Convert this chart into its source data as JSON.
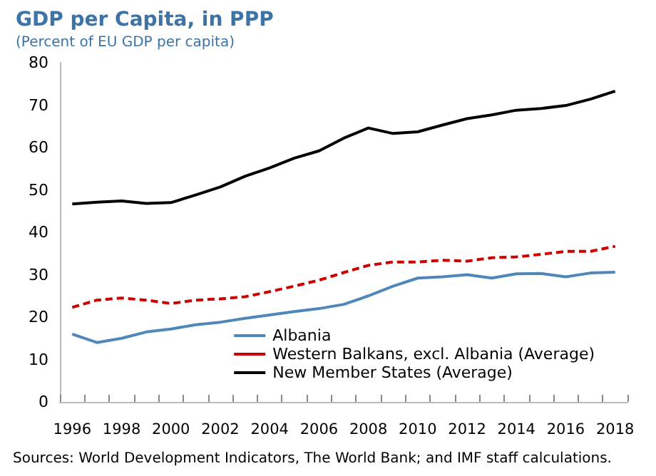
{
  "chart_data": {
    "type": "line",
    "title": "GDP per Capita, in PPP",
    "subtitle": "(Percent of EU GDP per capita)",
    "categories": [
      "1996",
      null,
      "1998",
      null,
      "2000",
      null,
      "2002",
      null,
      "2004",
      null,
      "2006",
      null,
      "2008",
      null,
      "2010",
      null,
      "2012",
      null,
      "2014",
      null,
      "2016",
      null,
      "2018"
    ],
    "series": [
      {
        "name": "Albania",
        "color": "#4f87ba",
        "line_style": "solid",
        "values": [
          16,
          14,
          15,
          16.5,
          17.2,
          18.2,
          18.8,
          19.7,
          20.5,
          21.3,
          22,
          23,
          25,
          27.3,
          29.2,
          29.5,
          30,
          29.2,
          30.2,
          30.3,
          29.5,
          30.4,
          30.6
        ]
      },
      {
        "name": "Western Balkans, excl. Albania (Average)",
        "color": "#cc0000",
        "line_style": "dashed",
        "values": [
          22.3,
          24,
          24.5,
          24,
          23.2,
          24,
          24.3,
          24.8,
          26,
          27.3,
          28.7,
          30.5,
          32.2,
          33,
          33,
          33.4,
          33.2,
          34,
          34.2,
          34.8,
          35.5,
          35.5,
          36.7
        ]
      },
      {
        "name": "New Member States (Average)",
        "color": "#000000",
        "line_style": "solid",
        "values": [
          46.7,
          47.1,
          47.4,
          46.8,
          47,
          48.8,
          50.7,
          53.2,
          55.2,
          57.5,
          59.2,
          62.2,
          64.6,
          63.3,
          63.7,
          65.3,
          66.8,
          67.7,
          68.8,
          69.2,
          69.9,
          71.4,
          73.3
        ]
      }
    ],
    "ylim": [
      0,
      80
    ],
    "yticks": [
      0,
      10,
      20,
      30,
      40,
      50,
      60,
      70,
      80
    ],
    "grid": false,
    "legend": "bottom right",
    "marker": "none",
    "annotations": [
      "Sources: World Development Indicators, The World Bank; and IMF staff calculations."
    ]
  }
}
